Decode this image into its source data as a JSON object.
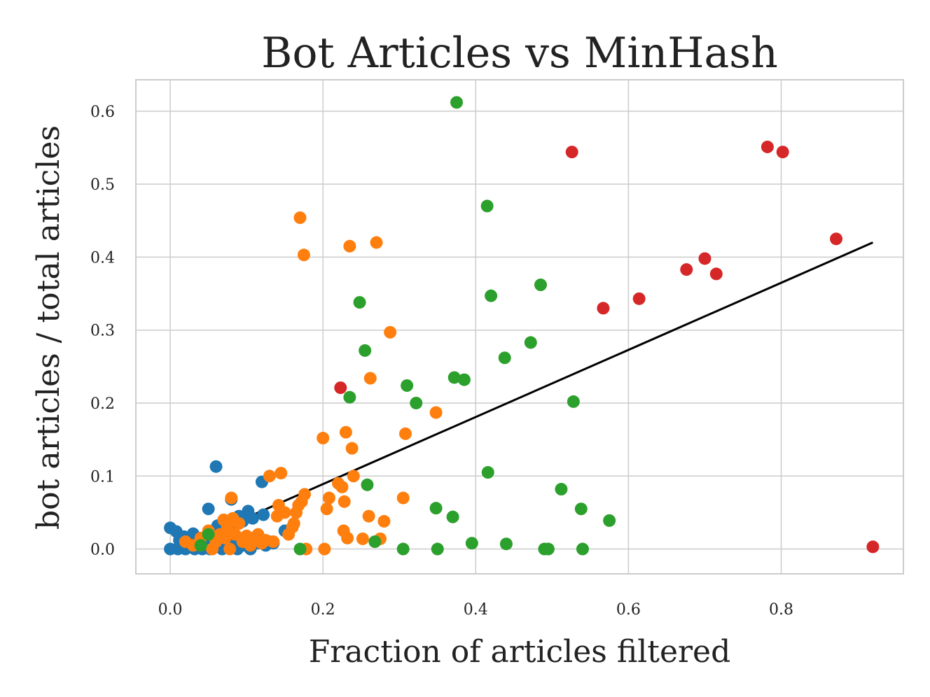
{
  "chart_data": {
    "type": "scatter",
    "title": "Bot Articles vs MinHash",
    "xlabel": "Fraction of articles filtered",
    "ylabel": "bot articles / total articles",
    "xlim": [
      -0.045,
      0.96
    ],
    "ylim": [
      -0.034,
      0.643
    ],
    "xticks": [
      0.0,
      0.2,
      0.4,
      0.6,
      0.8
    ],
    "xtick_labels": [
      "0.0",
      "0.2",
      "0.4",
      "0.6",
      "0.8"
    ],
    "yticks": [
      0.0,
      0.1,
      0.2,
      0.3,
      0.4,
      0.5,
      0.6
    ],
    "ytick_labels": [
      "0.0",
      "0.1",
      "0.2",
      "0.3",
      "0.4",
      "0.5",
      "0.6"
    ],
    "grid": true,
    "legend": "none",
    "series": [
      {
        "color": "#1f77b4",
        "points": [
          [
            0.0,
            0.0
          ],
          [
            0.0,
            0.029
          ],
          [
            0.008,
            0.024
          ],
          [
            0.01,
            0.0
          ],
          [
            0.012,
            0.012
          ],
          [
            0.015,
            0.005
          ],
          [
            0.018,
            0.017
          ],
          [
            0.02,
            0.0
          ],
          [
            0.022,
            0.008
          ],
          [
            0.025,
            0.015
          ],
          [
            0.028,
            0.003
          ],
          [
            0.03,
            0.021
          ],
          [
            0.032,
            0.0
          ],
          [
            0.035,
            0.01
          ],
          [
            0.038,
            0.005
          ],
          [
            0.04,
            0.015
          ],
          [
            0.042,
            0.0
          ],
          [
            0.045,
            0.008
          ],
          [
            0.048,
            0.012
          ],
          [
            0.05,
            0.055
          ],
          [
            0.052,
            0.0
          ],
          [
            0.055,
            0.02
          ],
          [
            0.058,
            0.005
          ],
          [
            0.06,
            0.113
          ],
          [
            0.062,
            0.032
          ],
          [
            0.065,
            0.012
          ],
          [
            0.068,
            0.0
          ],
          [
            0.07,
            0.022
          ],
          [
            0.072,
            0.008
          ],
          [
            0.075,
            0.015
          ],
          [
            0.078,
            0.005
          ],
          [
            0.08,
            0.068
          ],
          [
            0.082,
            0.03
          ],
          [
            0.085,
            0.01
          ],
          [
            0.088,
            0.0
          ],
          [
            0.09,
            0.045
          ],
          [
            0.092,
            0.012
          ],
          [
            0.095,
            0.038
          ],
          [
            0.098,
            0.005
          ],
          [
            0.1,
            0.015
          ],
          [
            0.102,
            0.052
          ],
          [
            0.105,
            0.0
          ],
          [
            0.108,
            0.042
          ],
          [
            0.11,
            0.01
          ],
          [
            0.115,
            0.008
          ],
          [
            0.12,
            0.092
          ],
          [
            0.122,
            0.047
          ],
          [
            0.125,
            0.005
          ],
          [
            0.13,
            0.01
          ],
          [
            0.135,
            0.008
          ],
          [
            0.15,
            0.025
          ]
        ]
      },
      {
        "color": "#ff7f0e",
        "points": [
          [
            0.02,
            0.01
          ],
          [
            0.03,
            0.005
          ],
          [
            0.04,
            0.015
          ],
          [
            0.05,
            0.025
          ],
          [
            0.055,
            0.0
          ],
          [
            0.06,
            0.01
          ],
          [
            0.065,
            0.02
          ],
          [
            0.07,
            0.04
          ],
          [
            0.072,
            0.015
          ],
          [
            0.075,
            0.03
          ],
          [
            0.078,
            0.0
          ],
          [
            0.08,
            0.07
          ],
          [
            0.082,
            0.042
          ],
          [
            0.085,
            0.02
          ],
          [
            0.09,
            0.035
          ],
          [
            0.095,
            0.01
          ],
          [
            0.1,
            0.018
          ],
          [
            0.105,
            0.005
          ],
          [
            0.11,
            0.015
          ],
          [
            0.115,
            0.02
          ],
          [
            0.12,
            0.008
          ],
          [
            0.125,
            0.012
          ],
          [
            0.13,
            0.1
          ],
          [
            0.135,
            0.01
          ],
          [
            0.14,
            0.045
          ],
          [
            0.142,
            0.06
          ],
          [
            0.145,
            0.104
          ],
          [
            0.15,
            0.05
          ],
          [
            0.155,
            0.02
          ],
          [
            0.16,
            0.03
          ],
          [
            0.162,
            0.035
          ],
          [
            0.165,
            0.05
          ],
          [
            0.168,
            0.06
          ],
          [
            0.17,
            0.454
          ],
          [
            0.172,
            0.065
          ],
          [
            0.175,
            0.403
          ],
          [
            0.176,
            0.075
          ],
          [
            0.178,
            0.0
          ],
          [
            0.2,
            0.152
          ],
          [
            0.202,
            0.0
          ],
          [
            0.205,
            0.055
          ],
          [
            0.208,
            0.07
          ],
          [
            0.22,
            0.09
          ],
          [
            0.225,
            0.085
          ],
          [
            0.227,
            0.025
          ],
          [
            0.228,
            0.065
          ],
          [
            0.23,
            0.16
          ],
          [
            0.232,
            0.015
          ],
          [
            0.235,
            0.415
          ],
          [
            0.238,
            0.138
          ],
          [
            0.24,
            0.1
          ],
          [
            0.252,
            0.014
          ],
          [
            0.26,
            0.045
          ],
          [
            0.262,
            0.234
          ],
          [
            0.27,
            0.42
          ],
          [
            0.275,
            0.014
          ],
          [
            0.28,
            0.038
          ],
          [
            0.288,
            0.297
          ],
          [
            0.305,
            0.07
          ],
          [
            0.308,
            0.158
          ],
          [
            0.348,
            0.187
          ]
        ]
      },
      {
        "color": "#2ca02c",
        "points": [
          [
            0.04,
            0.005
          ],
          [
            0.05,
            0.02
          ],
          [
            0.17,
            0.0
          ],
          [
            0.235,
            0.208
          ],
          [
            0.248,
            0.338
          ],
          [
            0.255,
            0.272
          ],
          [
            0.258,
            0.088
          ],
          [
            0.268,
            0.01
          ],
          [
            0.305,
            0.0
          ],
          [
            0.31,
            0.224
          ],
          [
            0.322,
            0.2
          ],
          [
            0.348,
            0.056
          ],
          [
            0.35,
            0.0
          ],
          [
            0.37,
            0.044
          ],
          [
            0.372,
            0.235
          ],
          [
            0.375,
            0.612
          ],
          [
            0.385,
            0.232
          ],
          [
            0.395,
            0.008
          ],
          [
            0.415,
            0.47
          ],
          [
            0.416,
            0.105
          ],
          [
            0.42,
            0.347
          ],
          [
            0.438,
            0.262
          ],
          [
            0.44,
            0.007
          ],
          [
            0.472,
            0.283
          ],
          [
            0.485,
            0.362
          ],
          [
            0.49,
            0.0
          ],
          [
            0.495,
            0.0
          ],
          [
            0.512,
            0.082
          ],
          [
            0.528,
            0.202
          ],
          [
            0.538,
            0.055
          ],
          [
            0.54,
            0.0
          ],
          [
            0.575,
            0.039
          ]
        ]
      },
      {
        "color": "#d62728",
        "points": [
          [
            0.223,
            0.221
          ],
          [
            0.526,
            0.544
          ],
          [
            0.567,
            0.33
          ],
          [
            0.614,
            0.343
          ],
          [
            0.676,
            0.383
          ],
          [
            0.7,
            0.398
          ],
          [
            0.715,
            0.377
          ],
          [
            0.782,
            0.551
          ],
          [
            0.802,
            0.544
          ],
          [
            0.872,
            0.425
          ],
          [
            0.92,
            0.003
          ]
        ]
      }
    ],
    "trendline": {
      "color": "#000000",
      "points": [
        [
          0.0,
          -0.003
        ],
        [
          0.92,
          0.42
        ]
      ]
    }
  }
}
